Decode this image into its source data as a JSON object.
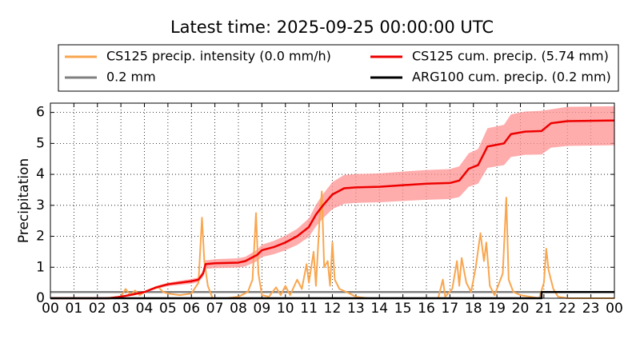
{
  "chart_data": {
    "type": "line",
    "title": "Latest time: 2025-09-25 00:00:00 UTC",
    "ylabel": "Precipitation",
    "xlim": [
      0,
      24
    ],
    "xticks": [
      {
        "value": 0,
        "label": "00"
      },
      {
        "value": 1,
        "label": "01"
      },
      {
        "value": 2,
        "label": "02"
      },
      {
        "value": 3,
        "label": "03"
      },
      {
        "value": 4,
        "label": "04"
      },
      {
        "value": 5,
        "label": "05"
      },
      {
        "value": 6,
        "label": "06"
      },
      {
        "value": 7,
        "label": "07"
      },
      {
        "value": 8,
        "label": "08"
      },
      {
        "value": 9,
        "label": "09"
      },
      {
        "value": 10,
        "label": "10"
      },
      {
        "value": 11,
        "label": "11"
      },
      {
        "value": 12,
        "label": "12"
      },
      {
        "value": 13,
        "label": "13"
      },
      {
        "value": 14,
        "label": "14"
      },
      {
        "value": 15,
        "label": "15"
      },
      {
        "value": 16,
        "label": "16"
      },
      {
        "value": 17,
        "label": "17"
      },
      {
        "value": 18,
        "label": "18"
      },
      {
        "value": 19,
        "label": "19"
      },
      {
        "value": 20,
        "label": "20"
      },
      {
        "value": 21,
        "label": "21"
      },
      {
        "value": 22,
        "label": "22"
      },
      {
        "value": 23,
        "label": "23"
      },
      {
        "value": 24,
        "label": "00"
      }
    ],
    "ylim": [
      0,
      6.3
    ],
    "yticks": [
      0,
      1,
      2,
      3,
      4,
      5,
      6
    ],
    "grid": true,
    "legend": "top",
    "series": [
      {
        "name": "CS125 precip. intensity (0.0 mm/h)",
        "color": "#f9a64f",
        "x": [
          2.3,
          3.0,
          3.2,
          3.4,
          3.6,
          3.8,
          4.0,
          4.3,
          4.6,
          4.8,
          5.0,
          5.5,
          6.0,
          6.3,
          6.45,
          6.55,
          6.7,
          6.9,
          7.5,
          8.0,
          8.4,
          8.6,
          8.75,
          8.85,
          9.0,
          9.3,
          9.6,
          9.8,
          10.0,
          10.2,
          10.5,
          10.7,
          10.9,
          11.0,
          11.2,
          11.3,
          11.45,
          11.55,
          11.65,
          11.8,
          11.9,
          12.0,
          12.1,
          12.3,
          12.6,
          13.0,
          13.5,
          16.5,
          16.7,
          16.8,
          17.1,
          17.3,
          17.4,
          17.5,
          17.7,
          17.9,
          18.1,
          18.3,
          18.45,
          18.55,
          18.7,
          18.9,
          19.1,
          19.25,
          19.4,
          19.5,
          19.7,
          20.0,
          20.4,
          20.8,
          21.0,
          21.1,
          21.2,
          21.4,
          21.6,
          22.0,
          24.0
        ],
        "values": [
          0,
          0.05,
          0.3,
          0.1,
          0.25,
          0.1,
          0.2,
          0.3,
          0.35,
          0.2,
          0.15,
          0.1,
          0.15,
          0.5,
          2.6,
          1.2,
          0.4,
          0,
          0,
          0.05,
          0.2,
          0.6,
          2.75,
          0.8,
          0.1,
          0.05,
          0.35,
          0.1,
          0.4,
          0.1,
          0.6,
          0.3,
          1.1,
          0.5,
          1.5,
          0.4,
          2.5,
          3.45,
          1.0,
          1.2,
          0.4,
          1.8,
          0.6,
          0.3,
          0.2,
          0.05,
          0,
          0,
          0.6,
          0.05,
          0.3,
          1.2,
          0.4,
          1.3,
          0.5,
          0.2,
          1.0,
          2.1,
          1.2,
          1.8,
          0.4,
          0.1,
          0.5,
          0.8,
          3.25,
          0.6,
          0.2,
          0.1,
          0.05,
          0,
          0.5,
          1.6,
          0.9,
          0.3,
          0.05,
          0,
          0
        ]
      },
      {
        "name": "CS125 cum. precip. (5.74 mm)",
        "color": "#ee0000",
        "band_color": "#ff9090",
        "x": [
          0,
          2.5,
          3,
          3.5,
          4,
          4.5,
          5,
          5.5,
          6,
          6.3,
          6.5,
          6.6,
          7,
          8,
          8.3,
          8.8,
          9,
          9.5,
          10,
          10.5,
          11,
          11.3,
          11.6,
          12,
          12.5,
          13,
          14,
          15,
          16,
          17,
          17.4,
          17.8,
          18.2,
          18.6,
          19.3,
          19.6,
          20.2,
          20.9,
          21.3,
          22,
          24
        ],
        "values": [
          0,
          0,
          0.05,
          0.12,
          0.2,
          0.35,
          0.45,
          0.5,
          0.55,
          0.6,
          0.8,
          1.1,
          1.13,
          1.15,
          1.2,
          1.4,
          1.55,
          1.65,
          1.8,
          2.0,
          2.3,
          2.7,
          3.0,
          3.35,
          3.55,
          3.58,
          3.6,
          3.65,
          3.7,
          3.72,
          3.8,
          4.18,
          4.3,
          4.9,
          5.0,
          5.3,
          5.38,
          5.4,
          5.65,
          5.72,
          5.74
        ],
        "band_upper": [
          0,
          0,
          0.06,
          0.13,
          0.22,
          0.39,
          0.5,
          0.56,
          0.62,
          0.67,
          0.9,
          1.22,
          1.26,
          1.29,
          1.34,
          1.57,
          1.73,
          1.85,
          2.02,
          2.24,
          2.58,
          3.02,
          3.36,
          3.75,
          3.98,
          4.01,
          4.03,
          4.09,
          4.14,
          4.17,
          4.26,
          4.68,
          4.82,
          5.49,
          5.6,
          5.94,
          6.03,
          6.05,
          6.1,
          6.18,
          6.2
        ],
        "band_lower": [
          0,
          0,
          0.04,
          0.1,
          0.17,
          0.3,
          0.39,
          0.43,
          0.47,
          0.52,
          0.69,
          0.95,
          0.97,
          0.99,
          1.03,
          1.2,
          1.33,
          1.42,
          1.55,
          1.72,
          1.98,
          2.32,
          2.58,
          2.88,
          3.05,
          3.08,
          3.1,
          3.14,
          3.18,
          3.2,
          3.27,
          3.6,
          3.7,
          4.21,
          4.3,
          4.56,
          4.63,
          4.64,
          4.86,
          4.92,
          4.94
        ]
      },
      {
        "name": "0.2 mm",
        "color": "#808080",
        "x": [
          0,
          24
        ],
        "values": [
          0.2,
          0.2
        ]
      },
      {
        "name": "ARG100 cum. precip. (0.2 mm)",
        "color": "#000000",
        "x": [
          0,
          20.9,
          20.9,
          24
        ],
        "values": [
          0,
          0,
          0.2,
          0.2
        ]
      }
    ]
  }
}
